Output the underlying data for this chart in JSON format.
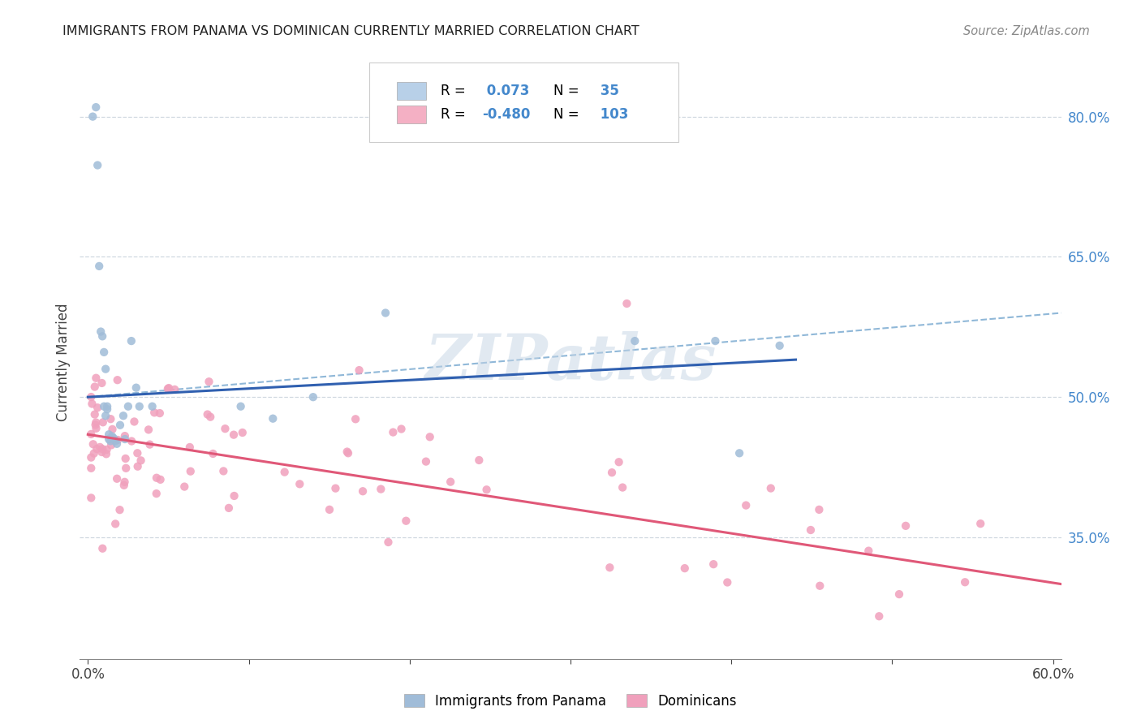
{
  "title": "IMMIGRANTS FROM PANAMA VS DOMINICAN CURRENTLY MARRIED CORRELATION CHART",
  "source": "Source: ZipAtlas.com",
  "ylabel": "Currently Married",
  "right_yticks": [
    "80.0%",
    "65.0%",
    "50.0%",
    "35.0%"
  ],
  "right_ytick_vals": [
    0.8,
    0.65,
    0.5,
    0.35
  ],
  "xlim": [
    -0.005,
    0.605
  ],
  "ylim": [
    0.22,
    0.855
  ],
  "legend_entry1": {
    "color": "#b8d0e8",
    "R": "0.073",
    "N": "35",
    "label": "Immigrants from Panama"
  },
  "legend_entry2": {
    "color": "#f4b0c4",
    "R": "-0.480",
    "N": "103",
    "label": "Dominicans"
  },
  "blue_scatter_color": "#a0bcd8",
  "pink_scatter_color": "#f0a0bc",
  "blue_line_color": "#3060b0",
  "pink_line_color": "#e05878",
  "dashed_line_color": "#90b8d8",
  "grid_color": "#d0d8e0",
  "watermark": "ZIPatlas",
  "blue_line_x0": 0.0,
  "blue_line_y0": 0.5,
  "blue_line_x1": 0.44,
  "blue_line_y1": 0.54,
  "dashed_line_x0": 0.0,
  "dashed_line_y0": 0.5,
  "dashed_line_x1": 0.605,
  "dashed_line_y1": 0.59,
  "pink_line_x0": 0.0,
  "pink_line_y0": 0.46,
  "pink_line_x1": 0.605,
  "pink_line_y1": 0.3
}
